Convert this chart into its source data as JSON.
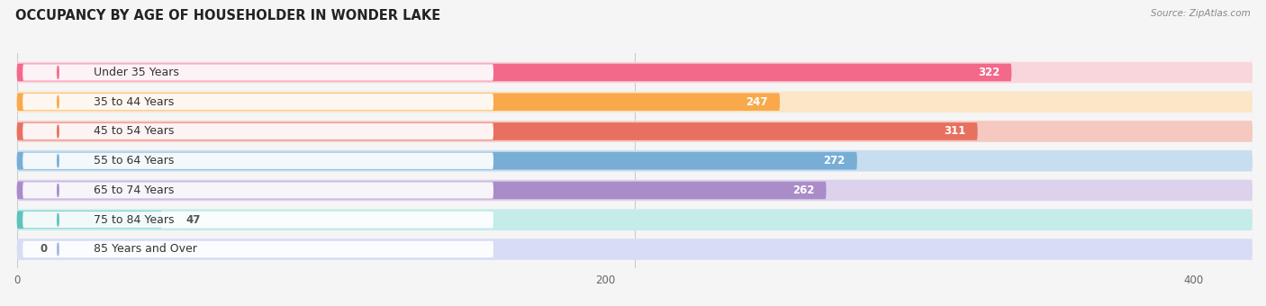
{
  "title": "OCCUPANCY BY AGE OF HOUSEHOLDER IN WONDER LAKE",
  "source": "Source: ZipAtlas.com",
  "categories": [
    "Under 35 Years",
    "35 to 44 Years",
    "45 to 54 Years",
    "55 to 64 Years",
    "65 to 74 Years",
    "75 to 84 Years",
    "85 Years and Over"
  ],
  "values": [
    322,
    247,
    311,
    272,
    262,
    47,
    0
  ],
  "bar_colors": [
    "#F2698A",
    "#F9A94B",
    "#E87060",
    "#78AED6",
    "#A98CC8",
    "#5DC4BC",
    "#A8B4E8"
  ],
  "bar_bg_colors": [
    "#F9D5DC",
    "#FCE6C8",
    "#F5C8C0",
    "#C8DDF0",
    "#DDD2EC",
    "#C4ECE8",
    "#D8DCF5"
  ],
  "dot_colors": [
    "#F2698A",
    "#F9A94B",
    "#E87060",
    "#78AED6",
    "#A98CC8",
    "#5DC4BC",
    "#A8B4E8"
  ],
  "xstart": 0,
  "xend": 420,
  "data_max": 400,
  "xticks": [
    0,
    200,
    400
  ],
  "background_color": "#f5f5f5",
  "title_fontsize": 10.5,
  "label_fontsize": 9,
  "value_fontsize": 8.5
}
